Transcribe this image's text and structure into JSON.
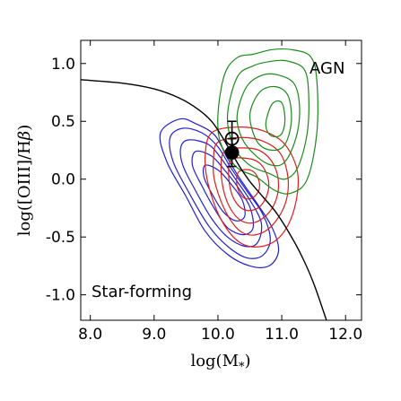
{
  "chart_data": {
    "type": "scatter",
    "xlabel": "log(M",
    "xlabel_sub": "*",
    "xlabel_close": ")",
    "ylabel": "log([OIII]/H",
    "ylabel_greek": "β",
    "ylabel_close": ")",
    "xlim": [
      7.85,
      12.25
    ],
    "ylim": [
      -1.22,
      1.2
    ],
    "xticks": [
      {
        "value": 8.0,
        "label": "8.0"
      },
      {
        "value": 9.0,
        "label": "9.0"
      },
      {
        "value": 10.0,
        "label": "10.0"
      },
      {
        "value": 11.0,
        "label": "11.0"
      },
      {
        "value": 12.0,
        "label": "12.0"
      }
    ],
    "yticks": [
      {
        "value": 1.0,
        "label": "1.0"
      },
      {
        "value": 0.5,
        "label": "0.5"
      },
      {
        "value": 0.0,
        "label": "0.0"
      },
      {
        "value": -0.5,
        "label": "-0.5"
      },
      {
        "value": -1.0,
        "label": "-1.0"
      }
    ],
    "annotations": [
      {
        "text": "AGN",
        "x": 11.55,
        "y": 0.92
      },
      {
        "text": "Star-forming",
        "x": 8.15,
        "y": -0.98
      }
    ],
    "colors": {
      "star_forming_contours": "#1f1fd6",
      "mid_contours": "#e01b1b",
      "agn_contours": "#1a8a1a",
      "dividing_line": "#000000"
    },
    "dividing_line": {
      "points": [
        [
          7.85,
          0.86
        ],
        [
          8.5,
          0.83
        ],
        [
          9.0,
          0.78
        ],
        [
          9.4,
          0.7
        ],
        [
          9.7,
          0.6
        ],
        [
          9.9,
          0.5
        ],
        [
          10.05,
          0.38
        ],
        [
          10.2,
          0.24
        ],
        [
          10.35,
          0.1
        ],
        [
          10.5,
          -0.02
        ],
        [
          10.7,
          -0.15
        ],
        [
          10.9,
          -0.28
        ],
        [
          11.1,
          -0.45
        ],
        [
          11.3,
          -0.65
        ],
        [
          11.5,
          -0.9
        ],
        [
          11.7,
          -1.22
        ]
      ]
    },
    "points": [
      {
        "x": 10.22,
        "y": 0.35,
        "yerr": [
          0.15,
          0.15
        ],
        "filled": false
      },
      {
        "x": 10.22,
        "y": 0.23,
        "yerr": [
          0.12,
          0.12
        ],
        "filled": true
      }
    ],
    "contours": {
      "star_forming": [
        [
          [
            9.4,
            0.52
          ],
          [
            9.65,
            0.48
          ],
          [
            9.95,
            0.38
          ],
          [
            10.15,
            0.18
          ],
          [
            10.35,
            0.0
          ],
          [
            10.6,
            -0.2
          ],
          [
            10.85,
            -0.42
          ],
          [
            10.95,
            -0.62
          ],
          [
            10.8,
            -0.75
          ],
          [
            10.5,
            -0.75
          ],
          [
            10.15,
            -0.65
          ],
          [
            9.8,
            -0.45
          ],
          [
            9.5,
            -0.15
          ],
          [
            9.2,
            0.15
          ],
          [
            9.1,
            0.4
          ]
        ],
        [
          [
            9.45,
            0.44
          ],
          [
            9.75,
            0.4
          ],
          [
            10.0,
            0.28
          ],
          [
            10.2,
            0.1
          ],
          [
            10.45,
            -0.1
          ],
          [
            10.7,
            -0.3
          ],
          [
            10.82,
            -0.52
          ],
          [
            10.7,
            -0.66
          ],
          [
            10.45,
            -0.68
          ],
          [
            10.15,
            -0.58
          ],
          [
            9.85,
            -0.4
          ],
          [
            9.55,
            -0.12
          ],
          [
            9.3,
            0.15
          ],
          [
            9.25,
            0.36
          ]
        ],
        [
          [
            9.55,
            0.34
          ],
          [
            9.85,
            0.3
          ],
          [
            10.05,
            0.18
          ],
          [
            10.25,
            0.02
          ],
          [
            10.5,
            -0.18
          ],
          [
            10.68,
            -0.38
          ],
          [
            10.62,
            -0.55
          ],
          [
            10.42,
            -0.58
          ],
          [
            10.15,
            -0.5
          ],
          [
            9.9,
            -0.34
          ],
          [
            9.65,
            -0.1
          ],
          [
            9.45,
            0.12
          ],
          [
            9.42,
            0.28
          ]
        ],
        [
          [
            9.65,
            0.24
          ],
          [
            9.9,
            0.2
          ],
          [
            10.1,
            0.08
          ],
          [
            10.3,
            -0.06
          ],
          [
            10.5,
            -0.24
          ],
          [
            10.55,
            -0.42
          ],
          [
            10.4,
            -0.48
          ],
          [
            10.15,
            -0.42
          ],
          [
            9.95,
            -0.26
          ],
          [
            9.75,
            -0.06
          ],
          [
            9.6,
            0.12
          ]
        ],
        [
          [
            9.8,
            0.12
          ],
          [
            10.0,
            0.08
          ],
          [
            10.2,
            -0.04
          ],
          [
            10.38,
            -0.18
          ],
          [
            10.42,
            -0.32
          ],
          [
            10.28,
            -0.36
          ],
          [
            10.08,
            -0.28
          ],
          [
            9.9,
            -0.12
          ],
          [
            9.78,
            0.02
          ]
        ]
      ],
      "mid": [
        [
          [
            9.9,
            0.4
          ],
          [
            10.3,
            0.45
          ],
          [
            10.7,
            0.42
          ],
          [
            11.05,
            0.3
          ],
          [
            11.25,
            0.05
          ],
          [
            11.2,
            -0.25
          ],
          [
            11.0,
            -0.48
          ],
          [
            10.7,
            -0.58
          ],
          [
            10.35,
            -0.55
          ],
          [
            10.05,
            -0.35
          ],
          [
            9.85,
            -0.05
          ],
          [
            9.8,
            0.2
          ]
        ],
        [
          [
            10.0,
            0.32
          ],
          [
            10.35,
            0.36
          ],
          [
            10.7,
            0.33
          ],
          [
            10.98,
            0.22
          ],
          [
            11.1,
            0.0
          ],
          [
            11.05,
            -0.22
          ],
          [
            10.85,
            -0.4
          ],
          [
            10.6,
            -0.48
          ],
          [
            10.35,
            -0.45
          ],
          [
            10.12,
            -0.28
          ],
          [
            9.95,
            -0.02
          ],
          [
            9.93,
            0.18
          ]
        ],
        [
          [
            10.1,
            0.24
          ],
          [
            10.4,
            0.27
          ],
          [
            10.68,
            0.24
          ],
          [
            10.88,
            0.12
          ],
          [
            10.95,
            -0.05
          ],
          [
            10.88,
            -0.22
          ],
          [
            10.7,
            -0.34
          ],
          [
            10.48,
            -0.38
          ],
          [
            10.28,
            -0.32
          ],
          [
            10.12,
            -0.16
          ],
          [
            10.05,
            0.06
          ]
        ],
        [
          [
            10.2,
            0.16
          ],
          [
            10.45,
            0.18
          ],
          [
            10.65,
            0.14
          ],
          [
            10.78,
            0.02
          ],
          [
            10.78,
            -0.12
          ],
          [
            10.65,
            -0.24
          ],
          [
            10.45,
            -0.27
          ],
          [
            10.28,
            -0.2
          ],
          [
            10.18,
            -0.04
          ]
        ],
        [
          [
            10.32,
            0.06
          ],
          [
            10.5,
            0.08
          ],
          [
            10.62,
            0.02
          ],
          [
            10.65,
            -0.08
          ],
          [
            10.55,
            -0.16
          ],
          [
            10.4,
            -0.16
          ],
          [
            10.3,
            -0.06
          ]
        ]
      ],
      "agn": [
        [
          [
            10.0,
            0.55
          ],
          [
            10.1,
            0.9
          ],
          [
            10.3,
            1.05
          ],
          [
            10.55,
            1.08
          ],
          [
            10.85,
            1.12
          ],
          [
            11.15,
            1.12
          ],
          [
            11.45,
            1.06
          ],
          [
            11.55,
            0.85
          ],
          [
            11.55,
            0.4
          ],
          [
            11.4,
            0.0
          ],
          [
            11.15,
            -0.12
          ],
          [
            10.9,
            -0.1
          ],
          [
            10.6,
            0.02
          ],
          [
            10.3,
            0.1
          ],
          [
            10.05,
            0.3
          ]
        ],
        [
          [
            10.15,
            0.55
          ],
          [
            10.3,
            0.88
          ],
          [
            10.55,
            0.98
          ],
          [
            10.85,
            1.02
          ],
          [
            11.1,
            1.02
          ],
          [
            11.35,
            0.95
          ],
          [
            11.42,
            0.75
          ],
          [
            11.4,
            0.4
          ],
          [
            11.25,
            0.1
          ],
          [
            11.05,
            0.0
          ],
          [
            10.8,
            0.05
          ],
          [
            10.5,
            0.12
          ],
          [
            10.25,
            0.28
          ]
        ],
        [
          [
            10.3,
            0.55
          ],
          [
            10.45,
            0.8
          ],
          [
            10.7,
            0.9
          ],
          [
            10.95,
            0.9
          ],
          [
            11.2,
            0.82
          ],
          [
            11.28,
            0.6
          ],
          [
            11.22,
            0.35
          ],
          [
            11.05,
            0.15
          ],
          [
            10.85,
            0.12
          ],
          [
            10.6,
            0.2
          ],
          [
            10.38,
            0.35
          ]
        ],
        [
          [
            10.5,
            0.55
          ],
          [
            10.65,
            0.75
          ],
          [
            10.9,
            0.8
          ],
          [
            11.1,
            0.72
          ],
          [
            11.15,
            0.5
          ],
          [
            11.05,
            0.3
          ],
          [
            10.85,
            0.25
          ],
          [
            10.62,
            0.32
          ]
        ],
        [
          [
            10.75,
            0.48
          ],
          [
            10.85,
            0.65
          ],
          [
            11.0,
            0.66
          ],
          [
            11.05,
            0.5
          ],
          [
            10.98,
            0.38
          ],
          [
            10.82,
            0.38
          ]
        ]
      ]
    }
  }
}
